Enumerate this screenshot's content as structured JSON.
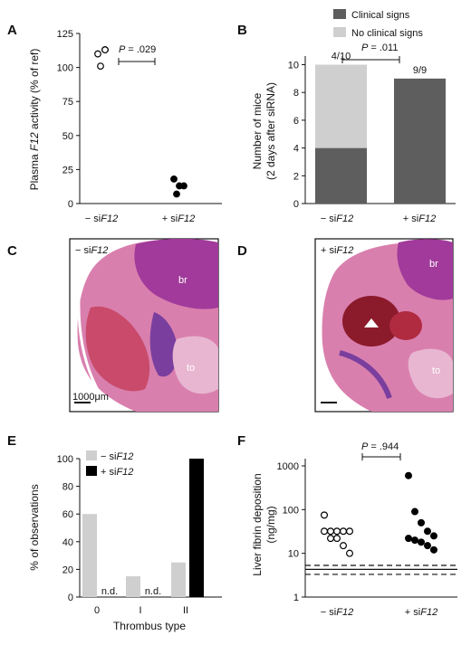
{
  "panels": {
    "A": {
      "letter": "A"
    },
    "B": {
      "letter": "B"
    },
    "C": {
      "letter": "C",
      "label_prefix": "− si",
      "label_italic": "F12",
      "scale_label": "1000μm",
      "region_br": "br",
      "region_to": "to"
    },
    "D": {
      "letter": "D",
      "label_prefix": "+ si",
      "label_italic": "F12",
      "region_br": "br",
      "region_to": "to"
    },
    "E": {
      "letter": "E"
    },
    "F": {
      "letter": "F"
    }
  },
  "colors": {
    "dark": "#5e5e5e",
    "light": "#cfcfcf",
    "black": "#000000",
    "tissue_pink": "#cf5e98",
    "tissue_red": "#8b1a2b",
    "tissue_purple": "#8a3a9e"
  },
  "chart_data": [
    {
      "panel": "A",
      "type": "scatter",
      "ylabel_pre": "Plasma ",
      "ylabel_italic": "F12",
      "ylabel_post": " activity (% of ref)",
      "ylim": [
        0,
        125
      ],
      "yticks": [
        0,
        25,
        50,
        75,
        100,
        125
      ],
      "categories": [
        {
          "pre": "− si",
          "italic": "F12"
        },
        {
          "pre": "+ si",
          "italic": "F12"
        }
      ],
      "series": [
        {
          "category": 0,
          "fill": "open",
          "values": [
            110,
            113,
            113,
            101
          ]
        },
        {
          "category": 1,
          "fill": "filled",
          "values": [
            18,
            13,
            13,
            7
          ]
        }
      ],
      "annotation": {
        "p_italic": "P",
        "p_text": " = .029"
      }
    },
    {
      "panel": "B",
      "type": "bar",
      "ylabel_line1": "Number of mice",
      "ylabel_line2": "(2 days after siRNA)",
      "ylim": [
        0,
        10
      ],
      "yticks": [
        0,
        2,
        4,
        6,
        8,
        10
      ],
      "categories": [
        {
          "pre": "− si",
          "italic": "F12"
        },
        {
          "pre": "+ si",
          "italic": "F12"
        }
      ],
      "legend": [
        "Clinical signs",
        "No clinical signs"
      ],
      "stacks": [
        {
          "clinical": 4,
          "no_clinical": 6,
          "label": "4/10"
        },
        {
          "clinical": 9,
          "no_clinical": 0,
          "label": "9/9"
        }
      ],
      "annotation": {
        "p_italic": "P",
        "p_text": " = .011"
      }
    },
    {
      "panel": "E",
      "type": "bar",
      "ylabel": "% of observations",
      "xlabel": "Thrombus type",
      "ylim": [
        0,
        100
      ],
      "yticks": [
        0,
        20,
        40,
        60,
        80,
        100
      ],
      "categories": [
        "0",
        "I",
        "II"
      ],
      "legend": [
        {
          "pre": "− si",
          "italic": "F12"
        },
        {
          "pre": "+ si",
          "italic": "F12"
        }
      ],
      "series": [
        {
          "values": [
            60,
            15,
            25
          ]
        },
        {
          "values": [
            null,
            null,
            100
          ]
        }
      ],
      "nd_label": "n.d."
    },
    {
      "panel": "F",
      "type": "scatter",
      "log_scale": true,
      "ylabel_line1": "Liver fibrin deposition",
      "ylabel_line2": "(ng/mg)",
      "ylim": [
        1,
        1000
      ],
      "yticks": [
        "1",
        "10",
        "100",
        "1000"
      ],
      "categories": [
        {
          "pre": "− si",
          "italic": "F12"
        },
        {
          "pre": "+ si",
          "italic": "F12"
        }
      ],
      "series": [
        {
          "category": 0,
          "fill": "open",
          "values": [
            75,
            32,
            32,
            32,
            32,
            32,
            22,
            22,
            15,
            10
          ]
        },
        {
          "category": 1,
          "fill": "filled",
          "values": [
            600,
            90,
            50,
            32,
            25,
            22,
            20,
            18,
            15,
            12
          ]
        }
      ],
      "reference_lines": {
        "solid": 4.3,
        "dashed": [
          5.3,
          3.3
        ]
      },
      "annotation": {
        "p_italic": "P",
        "p_text": " = .944"
      }
    }
  ]
}
